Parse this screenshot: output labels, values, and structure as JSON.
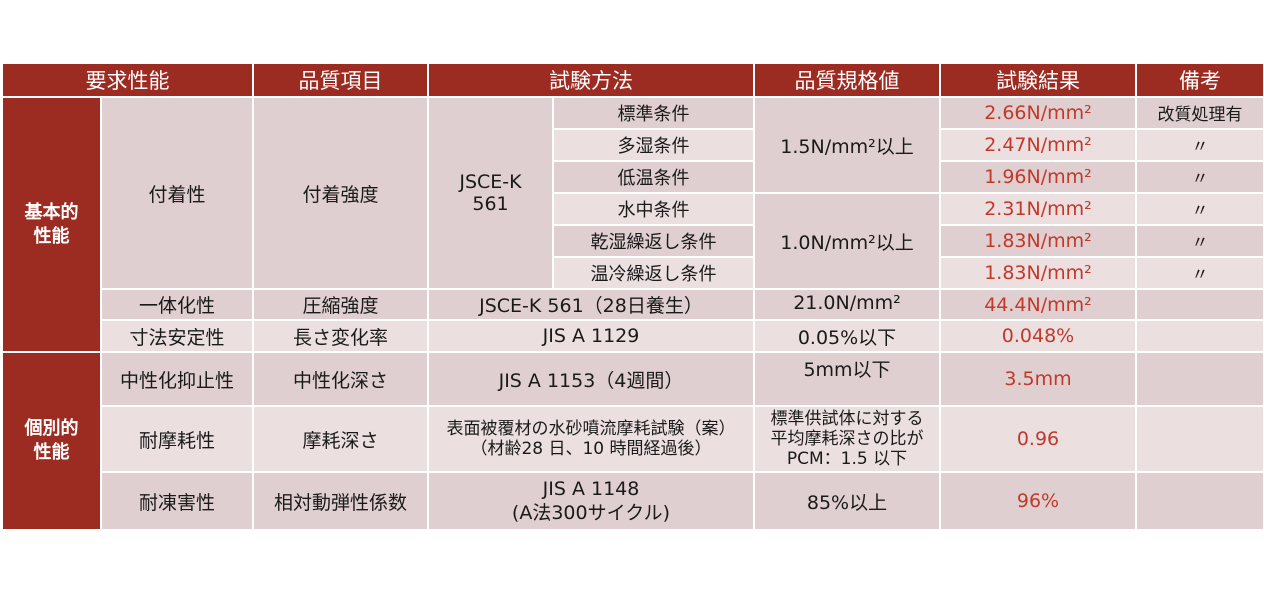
{
  "header": {
    "col_requirement": "要求性能",
    "col_quality_item": "品質項目",
    "col_test_method": "試験方法",
    "col_spec_value": "品質規格値",
    "col_result": "試験結果",
    "col_remarks": "備考"
  },
  "categories": {
    "basic_line1": "基本的",
    "basic_line2": "性能",
    "individual_line1": "個別的",
    "individual_line2": "性能"
  },
  "adhesion": {
    "requirement": "付着性",
    "item": "付着強度",
    "method_line1": "JSCE-K",
    "method_line2": "561",
    "spec1": "1.5N/mm²以上",
    "spec2": "1.0N/mm²以上",
    "rows": [
      {
        "condition": "標準条件",
        "result": "2.66N/mm²",
        "remark": "改質処理有"
      },
      {
        "condition": "多湿条件",
        "result": "2.47N/mm²",
        "remark": "〃"
      },
      {
        "condition": "低温条件",
        "result": "1.96N/mm²",
        "remark": "〃"
      },
      {
        "condition": "水中条件",
        "result": "2.31N/mm²",
        "remark": "〃"
      },
      {
        "condition": "乾湿繰返し条件",
        "result": "1.83N/mm²",
        "remark": "〃"
      },
      {
        "condition": "温冷繰返し条件",
        "result": "1.83N/mm²",
        "remark": "〃"
      }
    ]
  },
  "integration": {
    "requirement": "一体化性",
    "item": "圧縮強度",
    "method": "JSCE-K 561（28日養生）",
    "spec": "21.0N/mm²",
    "result": "44.4N/mm²"
  },
  "dimensional": {
    "requirement": "寸法安定性",
    "item": "長さ変化率",
    "method": "JIS A 1129",
    "spec": "0.05%以下",
    "result": "0.048%"
  },
  "carbonation": {
    "requirement": "中性化抑止性",
    "item": "中性化深さ",
    "method": "JIS A 1153（4週間）",
    "spec": "5mm以下",
    "result": "3.5mm"
  },
  "abrasion": {
    "requirement": "耐摩耗性",
    "item": "摩耗深さ",
    "method_line1": "表面被覆材の水砂噴流摩耗試験（案）",
    "method_line2": "（材齢28 日、10 時間経過後）",
    "spec_line1": "標準供試体に対する",
    "spec_line2": "平均摩耗深さの比が",
    "spec_line3": "PCM：1.5 以下",
    "result": "0.96"
  },
  "freeze": {
    "requirement": "耐凍害性",
    "item": "相対動弾性係数",
    "method_line1": "JIS A 1148",
    "method_line2": "(A法300サイクル)",
    "spec": "85%以上",
    "result": "96%"
  }
}
